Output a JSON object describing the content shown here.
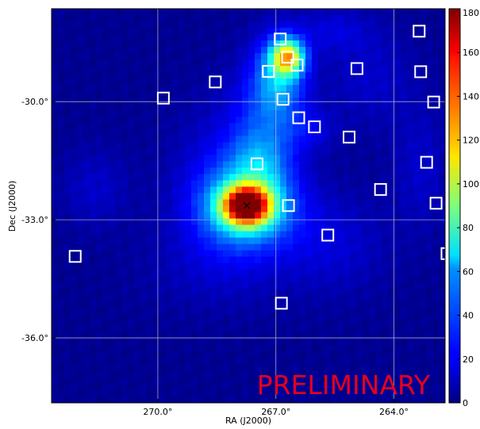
{
  "chart_data": {
    "type": "heatmap",
    "title": "",
    "xlabel": "RA (J2000)",
    "ylabel": "Dec (J2000)",
    "xlim": [
      272.7,
      262.7
    ],
    "ylim": [
      -37.65,
      -27.64
    ],
    "x_ticks": [
      {
        "value": 270.0,
        "label": "270.0°"
      },
      {
        "value": 267.0,
        "label": "267.0°"
      },
      {
        "value": 264.0,
        "label": "264.0°"
      }
    ],
    "y_ticks": [
      {
        "value": -30.0,
        "label": "-30.0°"
      },
      {
        "value": -33.0,
        "label": "-33.0°"
      },
      {
        "value": -36.0,
        "label": "-36.0°"
      }
    ],
    "grid": true,
    "colorbar": {
      "min": 0,
      "max": 180,
      "colormap": "jet",
      "ticks": [
        "0",
        "20",
        "40",
        "60",
        "80",
        "100",
        "120",
        "140",
        "160",
        "180"
      ]
    },
    "watermark": "PRELIMINARY",
    "watermark_color": "#e8001c",
    "peak_marker": {
      "ra": 267.74,
      "dec": -32.64
    },
    "sources": [
      {
        "ra": 269.86,
        "dec": -29.91
      },
      {
        "ra": 268.54,
        "dec": -29.5
      },
      {
        "ra": 267.19,
        "dec": -29.23
      },
      {
        "ra": 266.89,
        "dec": -28.41
      },
      {
        "ra": 266.7,
        "dec": -28.87
      },
      {
        "ra": 266.46,
        "dec": -29.07
      },
      {
        "ra": 266.82,
        "dec": -29.94
      },
      {
        "ra": 266.42,
        "dec": -30.41
      },
      {
        "ra": 266.02,
        "dec": -30.64
      },
      {
        "ra": 264.94,
        "dec": -29.16
      },
      {
        "ra": 265.14,
        "dec": -30.9
      },
      {
        "ra": 263.36,
        "dec": -28.21
      },
      {
        "ra": 263.32,
        "dec": -29.24
      },
      {
        "ra": 262.99,
        "dec": -30.01
      },
      {
        "ra": 263.17,
        "dec": -31.54
      },
      {
        "ra": 264.34,
        "dec": -32.23
      },
      {
        "ra": 267.48,
        "dec": -31.58
      },
      {
        "ra": 266.68,
        "dec": -32.64
      },
      {
        "ra": 265.68,
        "dec": -33.39
      },
      {
        "ra": 262.93,
        "dec": -32.58
      },
      {
        "ra": 262.65,
        "dec": -33.86
      },
      {
        "ra": 272.1,
        "dec": -33.93
      },
      {
        "ra": 266.86,
        "dec": -35.12
      }
    ],
    "emission_blobs": [
      {
        "ra": 267.74,
        "dec": -32.64,
        "peak": 150,
        "sigma_ra": 0.42,
        "sigma_dec": 0.34
      },
      {
        "ra": 267.7,
        "dec": -32.7,
        "peak": 55,
        "sigma_ra": 0.85,
        "sigma_dec": 0.7
      },
      {
        "ra": 266.7,
        "dec": -28.87,
        "peak": 95,
        "sigma_ra": 0.28,
        "sigma_dec": 0.3
      },
      {
        "ra": 266.9,
        "dec": -29.3,
        "peak": 45,
        "sigma_ra": 0.45,
        "sigma_dec": 0.7
      },
      {
        "ra": 267.3,
        "dec": -30.4,
        "peak": 22,
        "sigma_ra": 0.6,
        "sigma_dec": 1.0
      },
      {
        "ra": 267.4,
        "dec": -31.6,
        "peak": 26,
        "sigma_ra": 0.55,
        "sigma_dec": 0.6
      },
      {
        "ra": 268.3,
        "dec": -32.0,
        "peak": 16,
        "sigma_ra": 0.9,
        "sigma_dec": 1.3
      },
      {
        "ra": 266.2,
        "dec": -30.7,
        "peak": 14,
        "sigma_ra": 0.5,
        "sigma_dec": 0.4
      },
      {
        "ra": 264.6,
        "dec": -29.4,
        "peak": 10,
        "sigma_ra": 0.8,
        "sigma_dec": 0.9
      },
      {
        "ra": 263.3,
        "dec": -31.7,
        "peak": 10,
        "sigma_ra": 0.5,
        "sigma_dec": 1.1
      },
      {
        "ra": 265.6,
        "dec": -33.6,
        "peak": 12,
        "sigma_ra": 1.0,
        "sigma_dec": 0.9
      },
      {
        "ra": 268.5,
        "dec": -34.2,
        "peak": 8,
        "sigma_ra": 1.3,
        "sigma_dec": 0.8
      },
      {
        "ra": 271.6,
        "dec": -32.2,
        "peak": 10,
        "sigma_ra": 0.6,
        "sigma_dec": 0.7
      },
      {
        "ra": 265.6,
        "dec": -28.2,
        "peak": 12,
        "sigma_ra": 0.7,
        "sigma_dec": 0.4
      }
    ],
    "background_level": 3
  }
}
